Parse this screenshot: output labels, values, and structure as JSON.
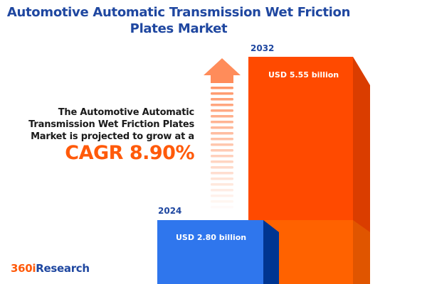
{
  "title": "Automotive Automatic Transmission Wet Friction Plates Market",
  "description": "The Automotive Automatic Transmission Wet Friction Plates Market is projected to grow at a",
  "cagr_label": "CAGR 8.90%",
  "logo": {
    "part1": "360i",
    "part2": "Research"
  },
  "colors": {
    "title": "#1f47a0",
    "bar_2024": "#2f76ed",
    "bar_2024_side": "#003591",
    "bar_2032": "#ff4a00",
    "bar_2032_side": "#da3d00",
    "accent": "#ff5a0a",
    "arrow": "#ff8c5a"
  },
  "chart_data": {
    "type": "bar",
    "categories": [
      "2024",
      "2032"
    ],
    "values": [
      2.8,
      5.55
    ],
    "unit": "USD billion",
    "data_labels": [
      "USD 2.80 billion",
      "USD 5.55 billion"
    ],
    "cagr_percent": 8.9
  }
}
